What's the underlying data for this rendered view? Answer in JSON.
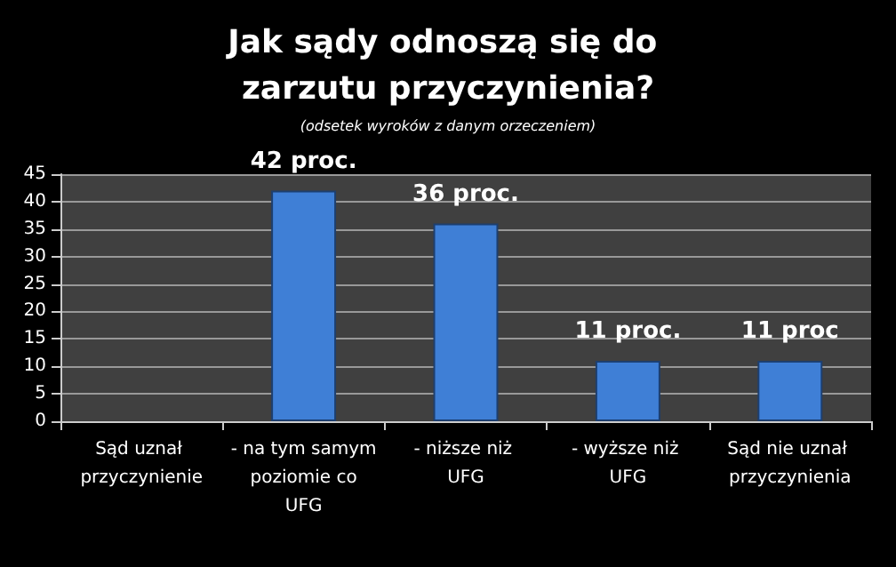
{
  "chart_data": {
    "type": "bar",
    "title": "Jak sądy odnoszą się do zarzutu przyczynienia?",
    "subtitle": "(odsetek wyroków z danym orzeczeniem)",
    "categories": [
      "Sąd uznał przyczynienie",
      "- na tym samym poziomie co UFG",
      "- niższe niż UFG",
      "- wyższe niż UFG",
      "Sąd nie uznał przyczynienia"
    ],
    "values": [
      null,
      42,
      36,
      11,
      11
    ],
    "value_labels": [
      null,
      "42 proc.",
      "36 proc.",
      "11 proc.",
      "11 proc"
    ],
    "color": "#3f7fd6",
    "ylim": [
      0,
      45
    ],
    "yticks": [
      0,
      5,
      10,
      15,
      20,
      25,
      30,
      35,
      40,
      45
    ],
    "grid": "y"
  }
}
